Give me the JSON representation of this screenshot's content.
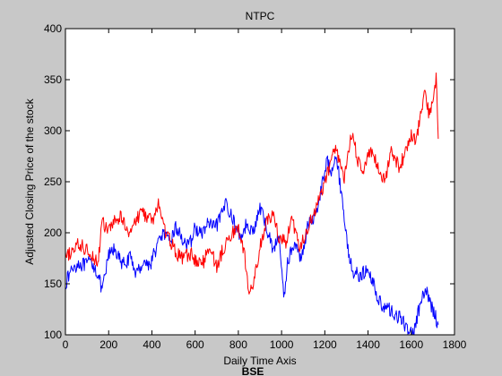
{
  "chart_data": {
    "type": "line",
    "title": "NTPC",
    "xlabel": "Daily Time Axis",
    "ylabel": "Adjusted Closing Price of the stock",
    "footer_label": "BSE",
    "xlim": [
      0,
      1800
    ],
    "ylim": [
      100,
      400
    ],
    "x_ticks": [
      0,
      200,
      400,
      600,
      800,
      1000,
      1200,
      1400,
      1600,
      1800
    ],
    "y_ticks": [
      100,
      150,
      200,
      250,
      300,
      350,
      400
    ],
    "grid": false,
    "series": [
      {
        "name": "NTPC",
        "color": "#0000ff",
        "x": [
          0,
          30,
          60,
          90,
          120,
          150,
          170,
          200,
          230,
          260,
          300,
          330,
          360,
          390,
          420,
          450,
          480,
          510,
          540,
          570,
          600,
          630,
          660,
          690,
          720,
          745,
          760,
          790,
          810,
          840,
          870,
          900,
          930,
          960,
          990,
          1010,
          1030,
          1060,
          1090,
          1120,
          1160,
          1190,
          1210,
          1230,
          1250,
          1270,
          1290,
          1310,
          1330,
          1360,
          1390,
          1420,
          1450,
          1480,
          1510,
          1540,
          1570,
          1590,
          1610,
          1630,
          1650,
          1670,
          1690,
          1710,
          1725
        ],
        "values": [
          150,
          165,
          170,
          168,
          172,
          160,
          142,
          178,
          185,
          168,
          175,
          160,
          172,
          168,
          185,
          200,
          190,
          205,
          195,
          185,
          205,
          198,
          210,
          204,
          215,
          232,
          220,
          205,
          195,
          210,
          200,
          225,
          205,
          185,
          195,
          135,
          175,
          188,
          175,
          205,
          220,
          250,
          270,
          262,
          278,
          250,
          215,
          180,
          162,
          158,
          162,
          155,
          132,
          128,
          122,
          118,
          110,
          105,
          100,
          120,
          135,
          142,
          130,
          120,
          110
        ]
      },
      {
        "name": "BSE",
        "color": "#ff0000",
        "x": [
          0,
          30,
          60,
          90,
          120,
          150,
          170,
          200,
          230,
          260,
          290,
          320,
          350,
          380,
          410,
          430,
          460,
          490,
          520,
          550,
          580,
          610,
          640,
          670,
          700,
          730,
          760,
          790,
          810,
          830,
          850,
          870,
          900,
          930,
          960,
          990,
          1020,
          1050,
          1080,
          1110,
          1140,
          1170,
          1200,
          1230,
          1250,
          1270,
          1290,
          1310,
          1330,
          1350,
          1380,
          1410,
          1440,
          1470,
          1490,
          1510,
          1540,
          1570,
          1600,
          1620,
          1640,
          1660,
          1680,
          1700,
          1715,
          1725
        ],
        "values": [
          175,
          182,
          188,
          185,
          180,
          170,
          210,
          202,
          212,
          215,
          202,
          208,
          222,
          215,
          212,
          230,
          202,
          190,
          178,
          175,
          180,
          170,
          172,
          188,
          165,
          185,
          195,
          205,
          200,
          175,
          140,
          150,
          185,
          210,
          218,
          195,
          190,
          215,
          185,
          195,
          215,
          230,
          250,
          270,
          285,
          268,
          252,
          282,
          300,
          270,
          262,
          280,
          268,
          250,
          262,
          282,
          265,
          275,
          298,
          290,
          310,
          338,
          318,
          328,
          352,
          292
        ]
      }
    ]
  }
}
